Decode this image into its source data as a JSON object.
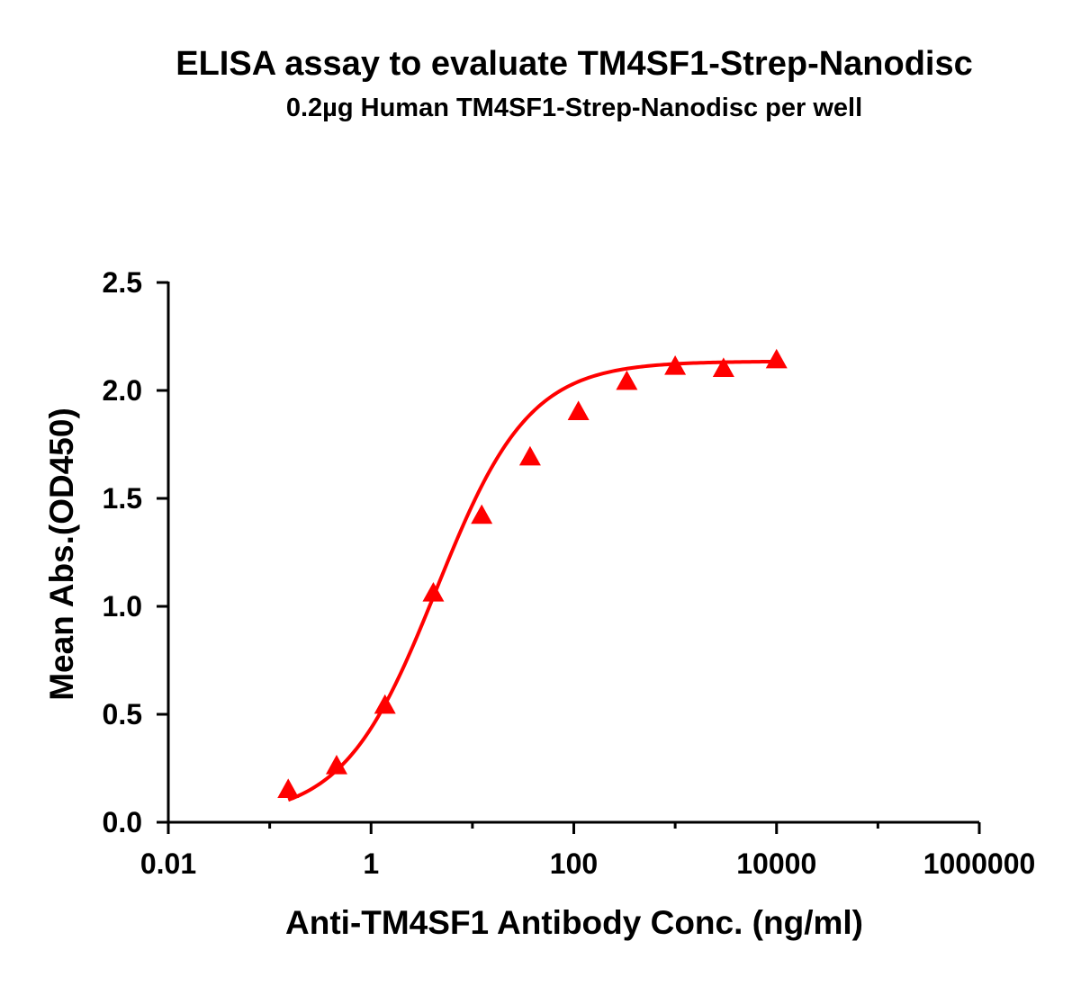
{
  "chart_data": {
    "type": "scatter",
    "title": "ELISA assay to evaluate TM4SF1-Strep-Nanodisc",
    "subtitle": "0.2µg Human TM4SF1-Strep-Nanodisc per well",
    "xlabel": "Anti-TM4SF1 Antibody Conc. (ng/ml)",
    "ylabel": "Mean Abs.(OD450)",
    "x_scale": "log",
    "xlim": [
      0.01,
      1000000
    ],
    "ylim": [
      0,
      2.5
    ],
    "x_ticks": [
      0.01,
      1,
      100,
      10000,
      1000000
    ],
    "x_tick_labels": [
      "0.01",
      "1",
      "100",
      "10000",
      "1000000"
    ],
    "y_ticks": [
      0,
      0.5,
      1.0,
      1.5,
      2.0,
      2.5
    ],
    "y_tick_labels": [
      "0.0",
      "0.5",
      "1.0",
      "1.5",
      "2.0",
      "2.5"
    ],
    "grid": false,
    "series": [
      {
        "marker": "triangle",
        "color": "#ff0000",
        "fit": "sigmoidal 4PL curve",
        "x": [
          0.1524,
          0.4572,
          1.3717,
          4.115,
          12.346,
          37.037,
          111.11,
          333.33,
          1000,
          3000,
          10000
        ],
        "y": [
          0.15,
          0.26,
          0.54,
          1.06,
          1.42,
          1.69,
          1.9,
          2.04,
          2.11,
          2.1,
          2.14
        ]
      }
    ]
  }
}
